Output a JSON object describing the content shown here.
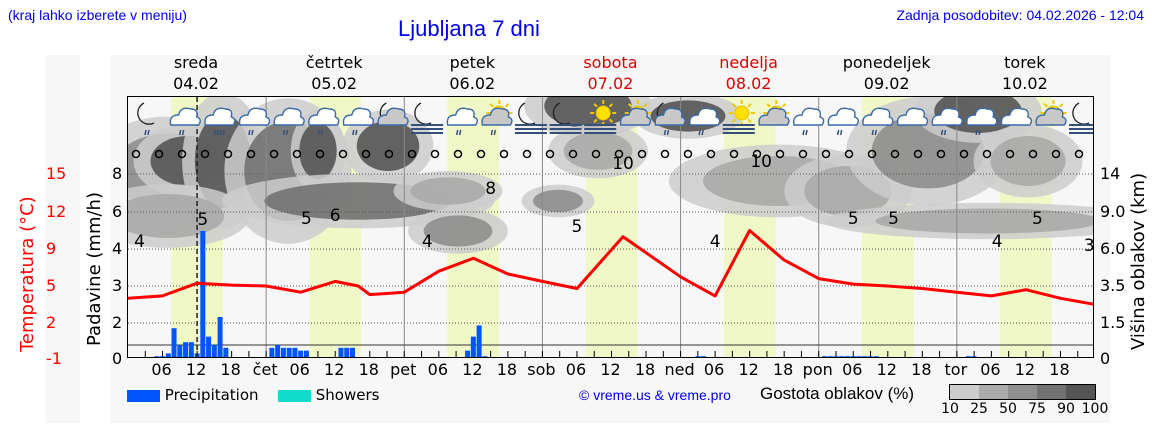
{
  "header": {
    "hint": "(kraj lahko izberete v meniju)",
    "title": "Ljubljana 7 dni",
    "updated": "Zadnja posodobitev: 04.02.2026 - 12:04"
  },
  "days": [
    {
      "name": "sreda",
      "date": "04.02",
      "weekend": false
    },
    {
      "name": "četrtek",
      "date": "05.02",
      "weekend": false
    },
    {
      "name": "petek",
      "date": "06.02",
      "weekend": false
    },
    {
      "name": "sobota",
      "date": "07.02",
      "weekend": true
    },
    {
      "name": "nedelja",
      "date": "08.02",
      "weekend": true
    },
    {
      "name": "ponedeljek",
      "date": "09.02",
      "weekend": false
    },
    {
      "name": "torek",
      "date": "10.02",
      "weekend": false
    }
  ],
  "axes": {
    "temp_label": "Temperatura (°C)",
    "temp_ticks": [
      "15",
      "12",
      "9",
      "5",
      "2",
      "-1"
    ],
    "precip_label": "Padavine (mm/h)",
    "precip_ticks": [
      "8",
      "6",
      "4",
      "3",
      "2",
      "0"
    ],
    "cloud_label": "Višina oblakov (km)",
    "cloud_ticks": [
      "14",
      "9.0",
      "6.0",
      "3.5",
      "1.5",
      "0"
    ],
    "x_ticks": [
      "06",
      "12",
      "18",
      "čet",
      "06",
      "12",
      "18",
      "pet",
      "06",
      "12",
      "18",
      "sob",
      "06",
      "12",
      "18",
      "ned",
      "06",
      "12",
      "18",
      "pon",
      "06",
      "12",
      "18",
      "tor",
      "06",
      "12",
      "18"
    ]
  },
  "legend": {
    "precipitation": "Precipitation",
    "showers": "Showers",
    "precipitation_color": "#0055ff",
    "showers_color": "#11ddcc",
    "credit": "© vreme.us & vreme.pro",
    "cloud_density_label": "Gostota oblakov (%)",
    "cloud_density_ticks": [
      "10",
      "25",
      "50",
      "75",
      "90",
      "100"
    ],
    "cloud_density_colors": [
      "#cccccc",
      "#aaaaaa",
      "#8e8e8e",
      "#727272",
      "#555555"
    ]
  },
  "colors": {
    "temperature": "#ff0000",
    "daylight": "#f0f8c8",
    "background": "#f7f7f7",
    "weekend": "#dd0000",
    "title": "#0000ee"
  },
  "icons": [
    "moon-rain",
    "cloud-rain",
    "cloud-heavy-rain",
    "cloud-rain",
    "cloud-rain",
    "cloud-rain",
    "cloud-rain",
    "moon-cloud",
    "moon-fog",
    "cloud-rain",
    "sun-cloud-rain",
    "moon-fog",
    "moon-fog",
    "sun-fog",
    "sun-cloud",
    "moon-cloud-rain",
    "cloud-rain",
    "sun-fog",
    "sun-cloud",
    "cloud-rain",
    "cloud-rain",
    "cloud-rain",
    "cloud",
    "cloud-rain",
    "cloud-rain",
    "cloud",
    "sun-cloud",
    "moon-fog"
  ],
  "chart_data": {
    "type": "line",
    "title": "Ljubljana 7 dni",
    "xlabel": "",
    "ylabel": "Temperatura (°C)",
    "x_range_hours": [
      0,
      168
    ],
    "temp_ylim": [
      -1,
      15
    ],
    "series": [
      {
        "name": "Temperatura (°C)",
        "x_hours": [
          0,
          6,
          12,
          18,
          24,
          30,
          36,
          40,
          42,
          48,
          54,
          60,
          66,
          72,
          78,
          86,
          90,
          96,
          102,
          108,
          114,
          120,
          126,
          132,
          138,
          144,
          150,
          156,
          162,
          168
        ],
        "values": [
          4.0,
          4.2,
          5.3,
          5.1,
          5.0,
          4.5,
          5.5,
          5.0,
          4.3,
          4.5,
          6.6,
          8.0,
          6.3,
          5.5,
          4.8,
          10.0,
          8.6,
          6.0,
          4.2,
          10.5,
          7.8,
          5.8,
          5.2,
          5.0,
          4.8,
          4.5,
          4.2,
          4.7,
          4.0,
          3.5
        ]
      }
    ],
    "temp_labels": [
      {
        "x_hour": 2,
        "value": "4"
      },
      {
        "x_hour": 13,
        "value": "5"
      },
      {
        "x_hour": 31,
        "value": "5"
      },
      {
        "x_hour": 36,
        "value": "6"
      },
      {
        "x_hour": 52,
        "value": "4"
      },
      {
        "x_hour": 63,
        "value": "8"
      },
      {
        "x_hour": 78,
        "value": "5"
      },
      {
        "x_hour": 86,
        "value": "10"
      },
      {
        "x_hour": 102,
        "value": "4"
      },
      {
        "x_hour": 110,
        "value": "10"
      },
      {
        "x_hour": 126,
        "value": "5"
      },
      {
        "x_hour": 133,
        "value": "5"
      },
      {
        "x_hour": 151,
        "value": "4"
      },
      {
        "x_hour": 158,
        "value": "5"
      },
      {
        "x_hour": 167,
        "value": "3"
      }
    ],
    "precipitation_mm_h": {
      "x_hours": [
        5,
        6,
        7,
        8,
        9,
        10,
        11,
        12,
        13,
        14,
        15,
        16,
        17,
        25,
        26,
        27,
        28,
        29,
        30,
        31,
        37,
        38,
        39,
        59,
        60,
        61,
        62,
        99,
        100,
        121,
        122,
        123,
        124,
        125,
        126,
        127,
        128,
        129,
        130,
        146,
        147
      ],
      "values": [
        0.1,
        0.1,
        0.2,
        1.1,
        0.5,
        0.6,
        0.6,
        0.2,
        4.4,
        0.8,
        0.5,
        1.5,
        0.4,
        0.4,
        0.5,
        0.4,
        0.4,
        0.4,
        0.3,
        0.3,
        0.4,
        0.4,
        0.4,
        0.3,
        0.8,
        1.2,
        0.1,
        0.1,
        0.1,
        0.1,
        0.1,
        0.1,
        0.1,
        0.1,
        0.1,
        0.1,
        0.1,
        0.1,
        0.1,
        0.1,
        0.1
      ]
    },
    "current_time_hour": 12,
    "precip_ylim": [
      0,
      8
    ],
    "cloud_height_ylim_km": [
      0,
      14
    ],
    "grid": true,
    "legend_position": "bottom"
  }
}
